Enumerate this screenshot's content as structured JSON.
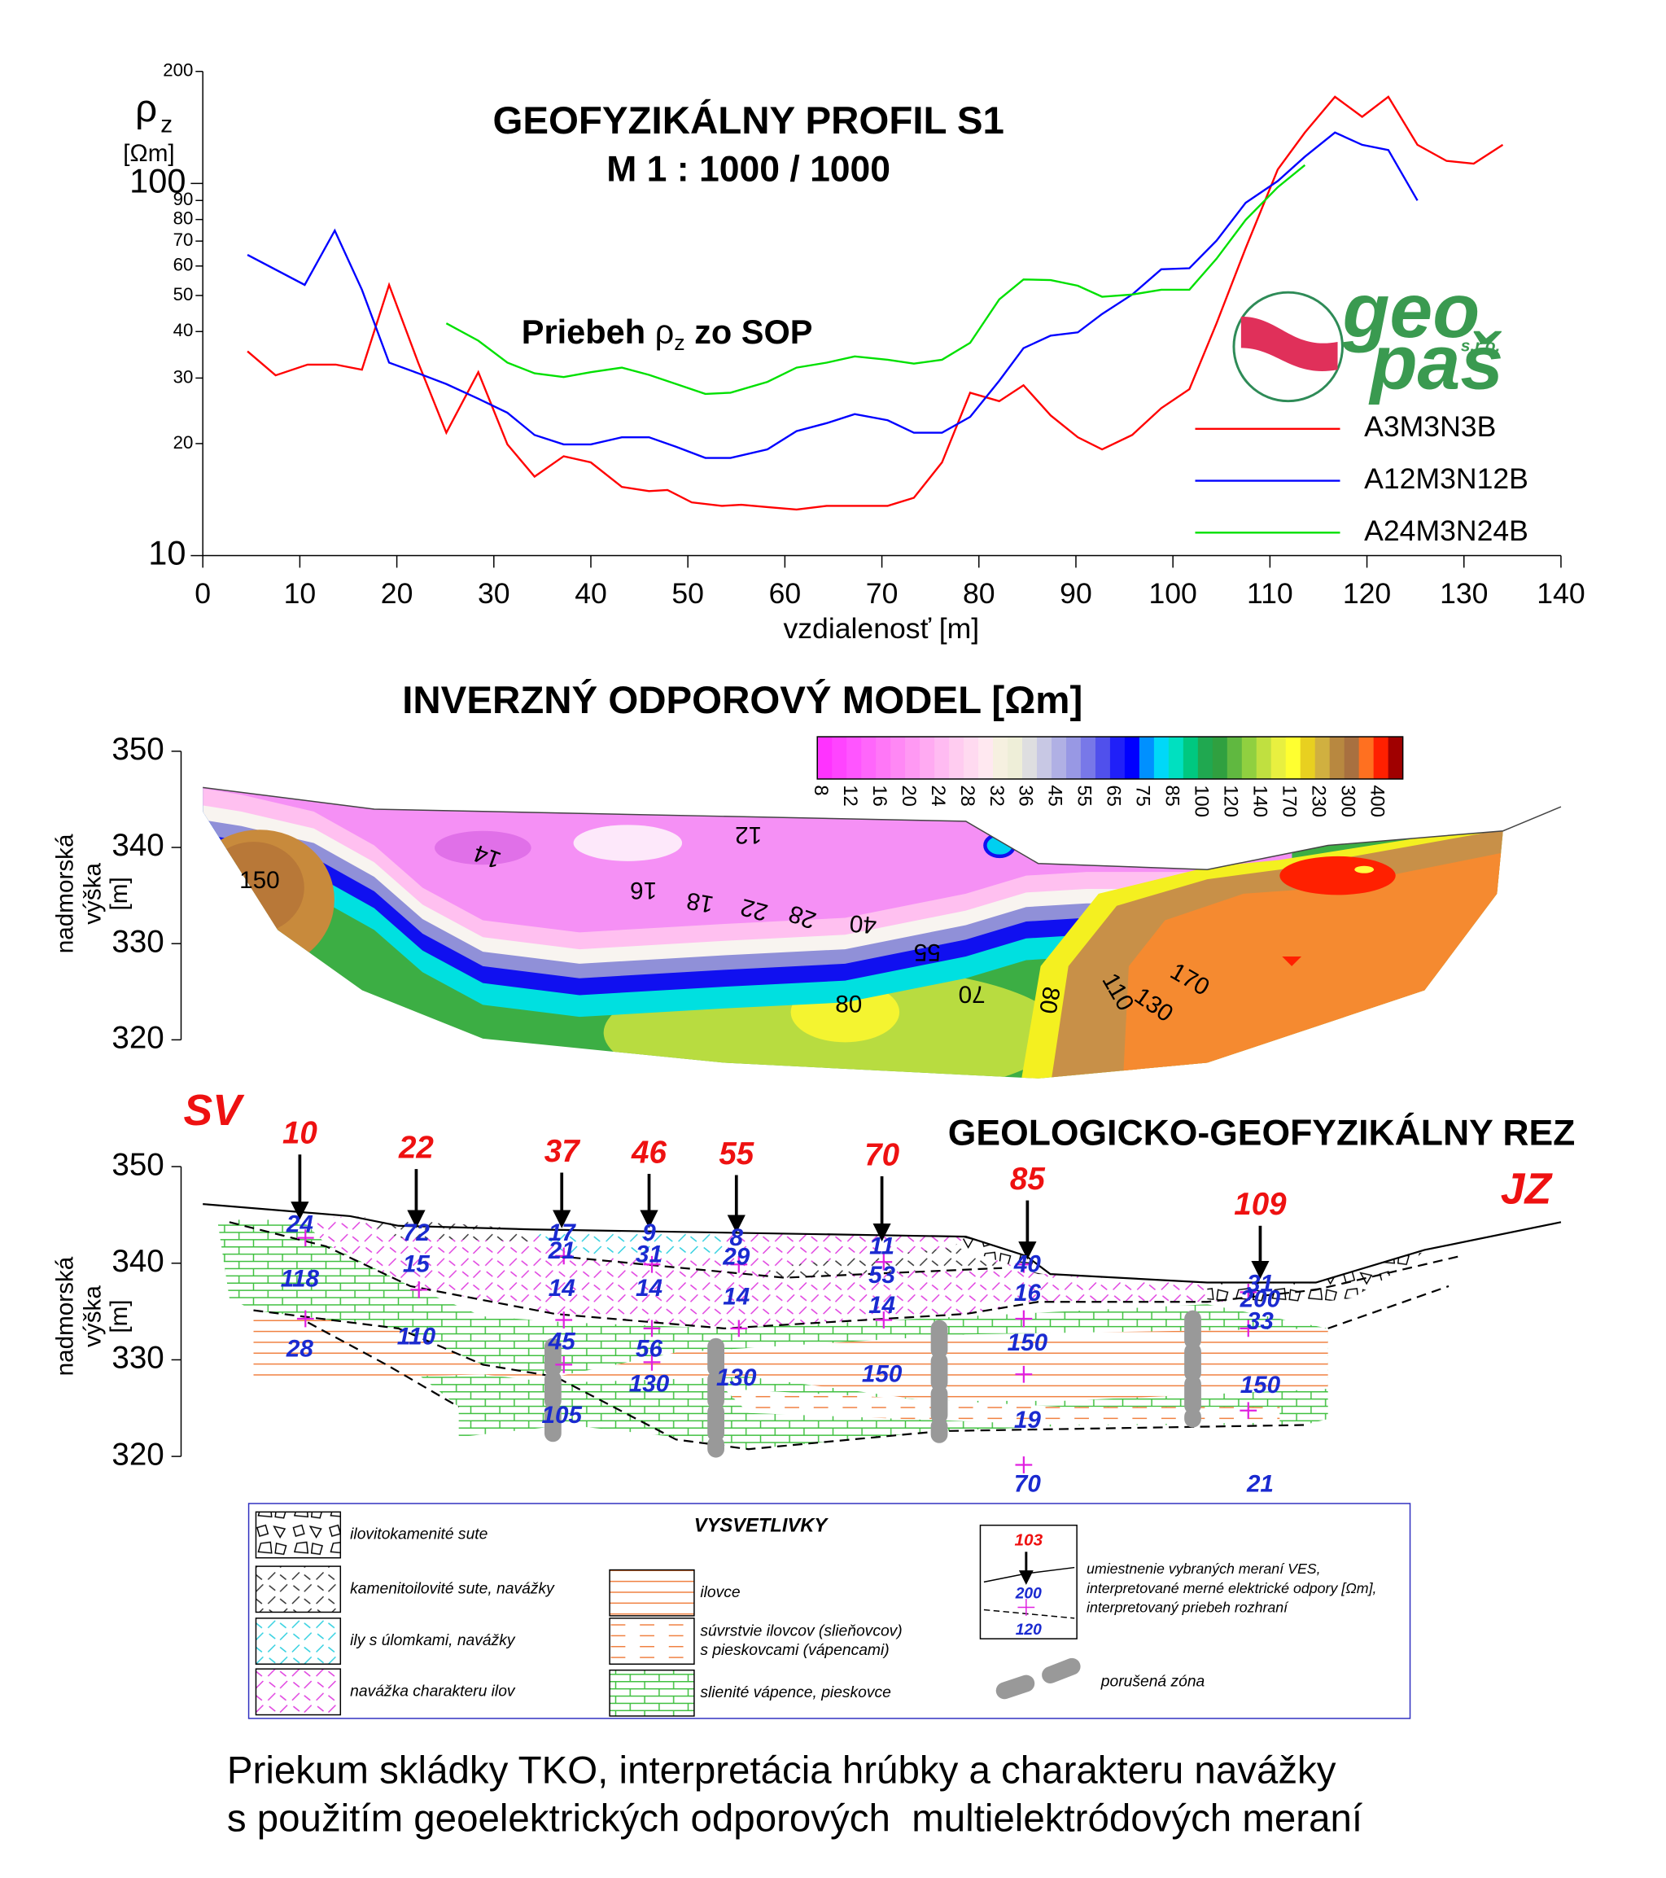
{
  "chart_data": {
    "type": "line",
    "title": "GEOFYZIKÁLNY PROFIL S1",
    "subtitle": "M 1 : 1000 / 1000",
    "ylabel": {
      "symbol": "ρ",
      "sub": "z",
      "unit": "[Ωm]"
    },
    "annotation": {
      "text": "Priebeh ",
      "symbol": "ρ",
      "sub": "z",
      "rest": " zo SOP"
    },
    "xlabel": "vzdialenosť [m]",
    "xlim": [
      0,
      140
    ],
    "xticks": [
      0,
      10,
      20,
      30,
      40,
      50,
      60,
      70,
      80,
      90,
      100,
      110,
      120,
      130,
      140
    ],
    "ylim": [
      10,
      200
    ],
    "yticks": [
      10,
      20,
      30,
      40,
      50,
      60,
      70,
      80,
      90,
      100,
      200
    ],
    "log_y": true,
    "legend": "lower right",
    "series": [
      {
        "name": "A3M3N3B",
        "color": "#ff0000",
        "x": [
          4.6,
          7.5,
          10.8,
          13.7,
          16.4,
          19.2,
          22.2,
          25.1,
          28.4,
          31.4,
          34.2,
          37.2,
          40,
          43.2,
          46,
          47.9,
          50.4,
          53.5,
          55.5,
          58.2,
          61.2,
          64.3,
          67.2,
          70.6,
          73.3,
          76.2,
          79.1,
          82.1,
          84.6,
          87.4,
          90.2,
          92.7,
          95.8,
          98.8,
          101.7,
          104.5,
          107.5,
          110.8,
          113.6,
          116.7,
          119.5,
          122.2,
          125.2,
          128.2,
          131,
          134
        ],
        "values": [
          35.4,
          30.5,
          32.6,
          32.6,
          31.6,
          53.4,
          33,
          21.4,
          31.1,
          19.9,
          16.3,
          18.5,
          17.8,
          15.3,
          14.9,
          15,
          13.9,
          13.6,
          13.7,
          13.5,
          13.3,
          13.6,
          13.6,
          13.6,
          14.3,
          17.8,
          27.4,
          26,
          28.7,
          23.8,
          20.8,
          19.3,
          21.1,
          24.9,
          28,
          42.1,
          67,
          109,
          137,
          171,
          151,
          171,
          127,
          115,
          113,
          127
        ]
      },
      {
        "name": "A12M3N12B",
        "color": "#0000ff",
        "x": [
          4.6,
          10.5,
          13.6,
          16.4,
          19.2,
          22.2,
          25.1,
          28.4,
          31.4,
          34.2,
          37.2,
          40,
          43.2,
          46,
          48.8,
          51.8,
          54.4,
          58.2,
          61.2,
          64.3,
          67.2,
          70.6,
          73.3,
          76.2,
          79.1,
          82.1,
          84.6,
          87.4,
          90.2,
          92.7,
          95.8,
          98.8,
          101.7,
          104.5,
          107.5,
          110.8,
          113.6,
          116.7,
          119.5,
          122.2,
          125.2
        ],
        "values": [
          64.3,
          53.4,
          74.7,
          51.8,
          33,
          30.9,
          28.9,
          26.4,
          24.2,
          21.1,
          19.9,
          19.9,
          20.8,
          20.8,
          19.6,
          18.3,
          18.3,
          19.3,
          21.6,
          22.7,
          24,
          23.1,
          21.4,
          21.4,
          23.6,
          29.5,
          36.1,
          39,
          39.8,
          44.6,
          50.3,
          58.8,
          59.2,
          70.2,
          88.7,
          101.5,
          118,
          137,
          127,
          123,
          90
        ]
      },
      {
        "name": "A24M3N24B",
        "color": "#00e000",
        "x": [
          25.1,
          28.4,
          31.4,
          34.2,
          37.2,
          40,
          43.2,
          46,
          48.8,
          51.8,
          54.4,
          58.2,
          61.2,
          64.3,
          67.2,
          70.6,
          73.3,
          76.2,
          79.1,
          82.1,
          84.6,
          87.4,
          90.2,
          92.7,
          95.8,
          98.8,
          101.7,
          104.5,
          107.5,
          110.8,
          113.6
        ],
        "values": [
          42.1,
          37.8,
          33,
          30.9,
          30.2,
          31.1,
          32,
          30.6,
          28.9,
          27.2,
          27.4,
          29.3,
          32,
          33,
          34.3,
          33.6,
          32.8,
          33.6,
          37.3,
          48.8,
          55.2,
          55,
          53.1,
          49.6,
          50.3,
          51.8,
          51.8,
          62.8,
          79.8,
          97.7,
          112
        ]
      }
    ]
  },
  "logo": {
    "top": "geo",
    "small": "s.r.o.",
    "bottom": "paš"
  },
  "model": {
    "title": "INVERZNÝ ODPOROVÝ MODEL [Ωm]",
    "ylabel": [
      "nadmorská",
      "výška",
      "[m]"
    ],
    "ylim": [
      320,
      350
    ],
    "yticks": [
      350,
      340,
      330,
      320
    ],
    "colorbar": {
      "labels": [
        8,
        12,
        16,
        20,
        24,
        28,
        32,
        36,
        45,
        55,
        65,
        75,
        85,
        100,
        120,
        140,
        170,
        230,
        300,
        400
      ],
      "colors": [
        "#ff33ff",
        "#ff44ff",
        "#ff55ff",
        "#ff66fb",
        "#ff77f7",
        "#ff88f5",
        "#ff99f3",
        "#ffaaf2",
        "#ffbbf2",
        "#ffccf0",
        "#ffdaf0",
        "#ffe8f0",
        "#f6f0e0",
        "#eeeed8",
        "#dedee0",
        "#c8c8e4",
        "#b0b0e4",
        "#9898e4",
        "#7878e8",
        "#5050ec",
        "#2020f8",
        "#0000ff",
        "#0090ff",
        "#00d8f8",
        "#00e0c0",
        "#00c880",
        "#20a850",
        "#30a040",
        "#60b840",
        "#90d040",
        "#c0e040",
        "#e8f040",
        "#ffff30",
        "#e8d020",
        "#d0b040",
        "#b88840",
        "#a87040",
        "#ff7020",
        "#ff2000",
        "#a00000"
      ]
    },
    "contours": [
      150,
      14,
      12,
      16,
      18,
      22,
      28,
      40,
      55,
      70,
      80,
      80,
      110,
      130,
      170
    ]
  },
  "section": {
    "title": "GEOLOGICKO-GEOFYZIKÁLNY REZ",
    "left": "SV",
    "right": "JZ",
    "ylabel": [
      "nadmorská",
      "výška",
      "[m]"
    ],
    "ylim": [
      320,
      350
    ],
    "yticks": [
      350,
      340,
      330,
      320
    ],
    "soundings": [
      {
        "distance": 10,
        "values": [
          24,
          118,
          28
        ]
      },
      {
        "distance": 22,
        "values": [
          72,
          15,
          110
        ]
      },
      {
        "distance": 37,
        "values": [
          17,
          21,
          14,
          45,
          105
        ]
      },
      {
        "distance": 46,
        "values": [
          9,
          31,
          14,
          56,
          130
        ]
      },
      {
        "distance": 55,
        "values": [
          8,
          29,
          14,
          130
        ]
      },
      {
        "distance": 70,
        "values": [
          11,
          53,
          14,
          150
        ]
      },
      {
        "distance": 85,
        "values": [
          40,
          16,
          150,
          19,
          70
        ]
      },
      {
        "distance": 109,
        "values": [
          31,
          200,
          33,
          150,
          21
        ]
      }
    ]
  },
  "legend": {
    "title": "VYSVETLIVKY",
    "items": [
      [
        "ilovitokamenité sute"
      ],
      [
        "kamenitoilovité sute, navážky"
      ],
      [
        "ily s úlomkami, navážky"
      ],
      [
        "navážka charakteru ilov"
      ],
      [
        "ilovce"
      ],
      [
        "súvrstvie ilovcov (slieňovcov)",
        "s pieskovcami (vápencami)"
      ],
      [
        "slienité vápence, pieskovce"
      ]
    ],
    "sample": {
      "distance": 103,
      "values": [
        200,
        120
      ]
    },
    "sample_text": [
      "umiestnenie vybraných meraní VES,",
      "interpretované merné elektrické odpory [Ωm],",
      "interpretovaný priebeh rozhraní"
    ],
    "zone": "porušená zóna"
  },
  "caption": [
    "Priekum skládky TKO, interpretácia hrúbky a charakteru navážky",
    "s použitím geoelektrických odporových  multielektródových meraní"
  ]
}
